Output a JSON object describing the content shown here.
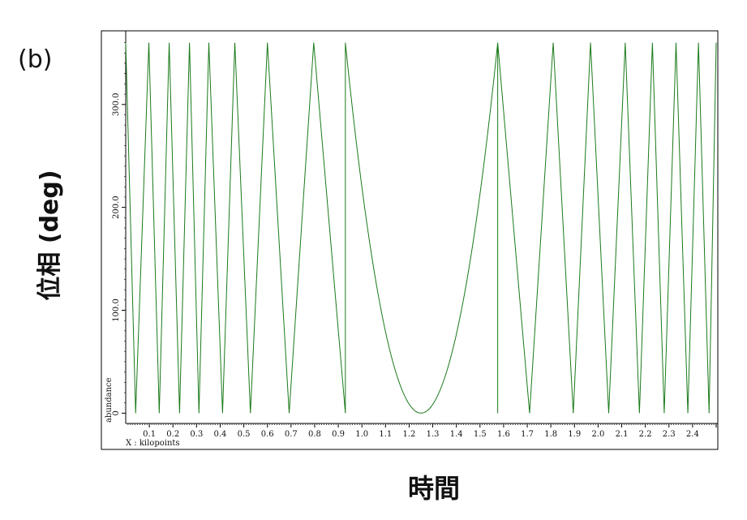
{
  "panel_label": "(b)",
  "chart_data": {
    "type": "line",
    "xlabel": "時間",
    "ylabel": "位相 (deg)",
    "axis_caption": "X : kilopoints",
    "y_axis_caption": "abundance",
    "xlim": [
      0.0,
      2.5
    ],
    "ylim": [
      -10,
      370
    ],
    "x_ticks": [
      "0.1",
      "0.2",
      "0.3",
      "0.4",
      "0.5",
      "0.6",
      "0.7",
      "0.8",
      "0.9",
      "1.0",
      "1.1",
      "1.2",
      "1.3",
      "1.4",
      "1.5",
      "1.6",
      "1.7",
      "1.8",
      "1.9",
      "2.0",
      "2.1",
      "2.2",
      "2.3",
      "2.4"
    ],
    "y_ticks": [
      "0",
      "100.0",
      "200.0",
      "300.0"
    ],
    "series": [
      {
        "color": "#1a7a1a",
        "description_model": "phase wrapped modulo 360 of a parabola with vertex near x=1.25",
        "vertex_x": 1.25,
        "phase_at_edges": 360,
        "wrap": 360,
        "x": [
          0.0,
          0.042,
          0.098,
          0.142,
          0.184,
          0.228,
          0.27,
          0.31,
          0.352,
          0.41,
          0.462,
          0.528,
          0.6,
          0.692,
          0.796,
          0.93,
          1.25,
          1.575,
          1.71,
          1.81,
          1.895,
          1.968,
          2.045,
          2.115,
          2.175,
          2.23,
          2.28,
          2.33,
          2.38,
          2.425,
          2.47,
          2.5
        ],
        "y": [
          360,
          0,
          360,
          0,
          360,
          0,
          360,
          0,
          360,
          0,
          360,
          0,
          360,
          0,
          360,
          0,
          0,
          360,
          0,
          360,
          0,
          360,
          0,
          360,
          0,
          360,
          0,
          360,
          0,
          360,
          0,
          360
        ]
      }
    ]
  }
}
